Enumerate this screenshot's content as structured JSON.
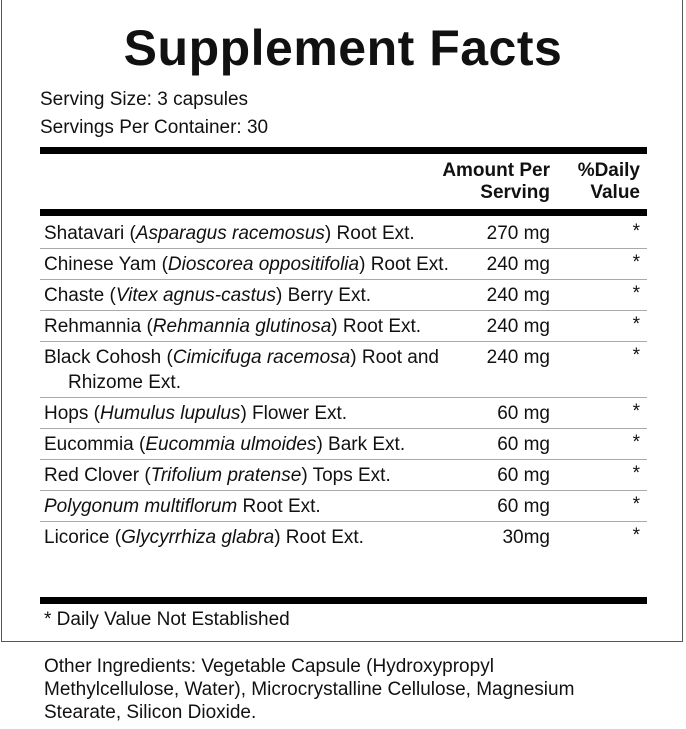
{
  "title": "Supplement Facts",
  "serving_size": "Serving Size: 3 capsules",
  "servings_per_container": "Servings Per Container: 30",
  "headers": {
    "amount_line1": "Amount Per",
    "amount_line2": "Serving",
    "dv_line1": "%Daily",
    "dv_line2": "Value"
  },
  "rows": [
    {
      "pre": "Shatavari (",
      "italic": "Asparagus racemosus",
      "post": ") Root Ext.",
      "amount": "270 mg",
      "dv": "*"
    },
    {
      "pre": "Chinese Yam (",
      "italic": "Dioscorea oppositifolia",
      "post": ") Root Ext.",
      "amount": "240 mg",
      "dv": "*"
    },
    {
      "pre": "Chaste (",
      "italic": "Vitex agnus-castus",
      "post": ") Berry Ext.",
      "amount": "240 mg",
      "dv": "*"
    },
    {
      "pre": "Rehmannia (",
      "italic": "Rehmannia glutinosa",
      "post": ") Root Ext.",
      "amount": "240 mg",
      "dv": "*"
    },
    {
      "pre": "Black Cohosh (",
      "italic": "Cimicifuga racemosa",
      "post": ") Root and Rhizome Ext.",
      "amount": "240 mg",
      "dv": "*"
    },
    {
      "pre": "Hops (",
      "italic": "Humulus lupulus",
      "post": ") Flower Ext.",
      "amount": "60 mg",
      "dv": "*"
    },
    {
      "pre": "Eucommia (",
      "italic": "Eucommia ulmoides",
      "post": ") Bark Ext.",
      "amount": "60 mg",
      "dv": "*"
    },
    {
      "pre": "Red Clover (",
      "italic": "Trifolium pratense",
      "post": ") Tops Ext.",
      "amount": "60 mg",
      "dv": "*"
    },
    {
      "pre": "",
      "italic": "Polygonum multiflorum",
      "post": " Root Ext.",
      "amount": "60 mg",
      "dv": "*"
    },
    {
      "pre": "Licorice (",
      "italic": "Glycyrrhiza glabra",
      "post": ") Root Ext.",
      "amount": "30mg",
      "dv": "*"
    }
  ],
  "footnote": "* Daily Value Not Established",
  "other_ingredients": "Other Ingredients: Vegetable Capsule (Hydroxypropyl Methylcellulose, Water), Microcrystalline Cellulose, Magnesium Stearate, Silicon Dioxide."
}
